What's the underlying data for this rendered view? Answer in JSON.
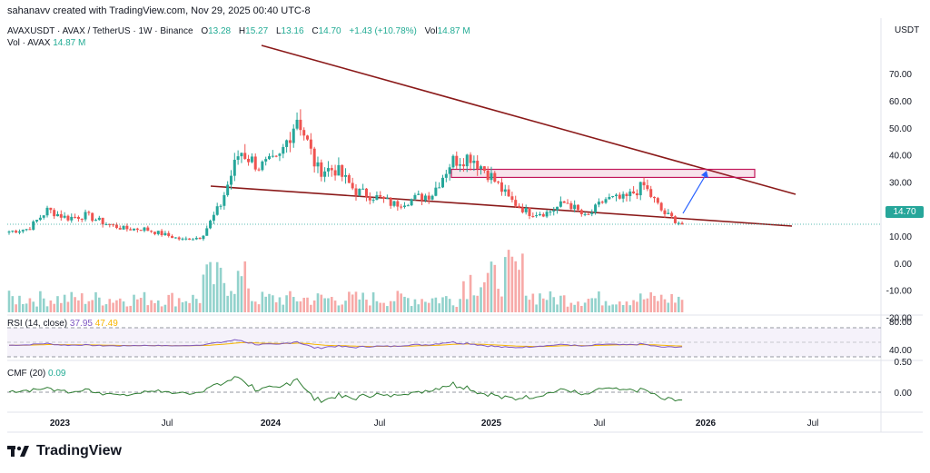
{
  "caption": "sahanavv created with TradingView.com, Nov 29, 2025 00:40 UTC-8",
  "legend": {
    "symbol": "AVAXUSDT · AVAX / TetherUS · 1W · Binance",
    "open_label": "O",
    "open": "13.28",
    "high_label": "H",
    "high": "15.27",
    "low_label": "L",
    "low": "13.16",
    "close_label": "C",
    "close": "14.70",
    "change": "+1.43 (+10.78%)",
    "vol_label": "Vol",
    "vol": "14.87 M",
    "vol_line_label": "Vol · AVAX",
    "vol_line_value": "14.87 M"
  },
  "rsi": {
    "label": "RSI (14, close)",
    "value": "37.95",
    "ma": "47.49"
  },
  "cmf": {
    "label": "CMF (20)",
    "value": "0.09"
  },
  "currency": "USDT",
  "last_price_tag": "14.70",
  "brand": "TradingView",
  "colors": {
    "up": "#26a69a",
    "down": "#ef5350",
    "trendline": "#8b1a1a",
    "rsi_line": "#7e57c2",
    "rsi_ma": "#f7b500",
    "cmf_line": "#2e7d32",
    "resistance_box": "#c2185b",
    "arrow": "#2962ff"
  },
  "chart_data": {
    "type": "candlestick",
    "title": "AVAXUSDT · AVAX / TetherUS · 1W · Binance",
    "timeframe": "1W",
    "x_ticks": [
      "2023",
      "Jul",
      "2024",
      "Jul",
      "2025",
      "Jul",
      "2026",
      "Jul"
    ],
    "y_ticks": [
      "70.00",
      "60.00",
      "50.00",
      "40.00",
      "30.00",
      "20.00",
      "10.00",
      "0.00",
      "-10.00",
      "-20.00"
    ],
    "ylim": [
      -20,
      80
    ],
    "rsi_ticks": [
      "80.00",
      "40.00"
    ],
    "cmf_ticks": [
      "0.50",
      "0.00"
    ],
    "last_price": 14.7,
    "annotations": [
      "upper descending trendline",
      "lower descending trendline",
      "resistance zone ~32-35",
      "projected move arrow"
    ],
    "close_series": [
      {
        "date": "2022-12",
        "close": 12
      },
      {
        "date": "2023-01",
        "close": 13
      },
      {
        "date": "2023-02",
        "close": 20
      },
      {
        "date": "2023-03",
        "close": 17
      },
      {
        "date": "2023-04",
        "close": 18
      },
      {
        "date": "2023-05",
        "close": 15
      },
      {
        "date": "2023-06",
        "close": 13
      },
      {
        "date": "2023-07",
        "close": 13
      },
      {
        "date": "2023-08",
        "close": 11
      },
      {
        "date": "2023-09",
        "close": 9
      },
      {
        "date": "2023-10",
        "close": 10
      },
      {
        "date": "2023-11",
        "close": 22
      },
      {
        "date": "2023-12",
        "close": 42
      },
      {
        "date": "2024-01",
        "close": 36
      },
      {
        "date": "2024-02",
        "close": 38
      },
      {
        "date": "2024-03",
        "close": 55
      },
      {
        "date": "2024-04",
        "close": 35
      },
      {
        "date": "2024-05",
        "close": 35
      },
      {
        "date": "2024-06",
        "close": 27
      },
      {
        "date": "2024-07",
        "close": 25
      },
      {
        "date": "2024-08",
        "close": 22
      },
      {
        "date": "2024-09",
        "close": 24
      },
      {
        "date": "2024-10",
        "close": 26
      },
      {
        "date": "2024-11",
        "close": 38
      },
      {
        "date": "2024-12",
        "close": 40
      },
      {
        "date": "2025-01",
        "close": 33
      },
      {
        "date": "2025-02",
        "close": 24
      },
      {
        "date": "2025-03",
        "close": 19
      },
      {
        "date": "2025-04",
        "close": 19
      },
      {
        "date": "2025-05",
        "close": 23
      },
      {
        "date": "2025-06",
        "close": 17
      },
      {
        "date": "2025-07",
        "close": 24
      },
      {
        "date": "2025-08",
        "close": 24
      },
      {
        "date": "2025-09",
        "close": 29
      },
      {
        "date": "2025-10",
        "close": 19
      },
      {
        "date": "2025-11",
        "close": 14.7
      }
    ]
  }
}
